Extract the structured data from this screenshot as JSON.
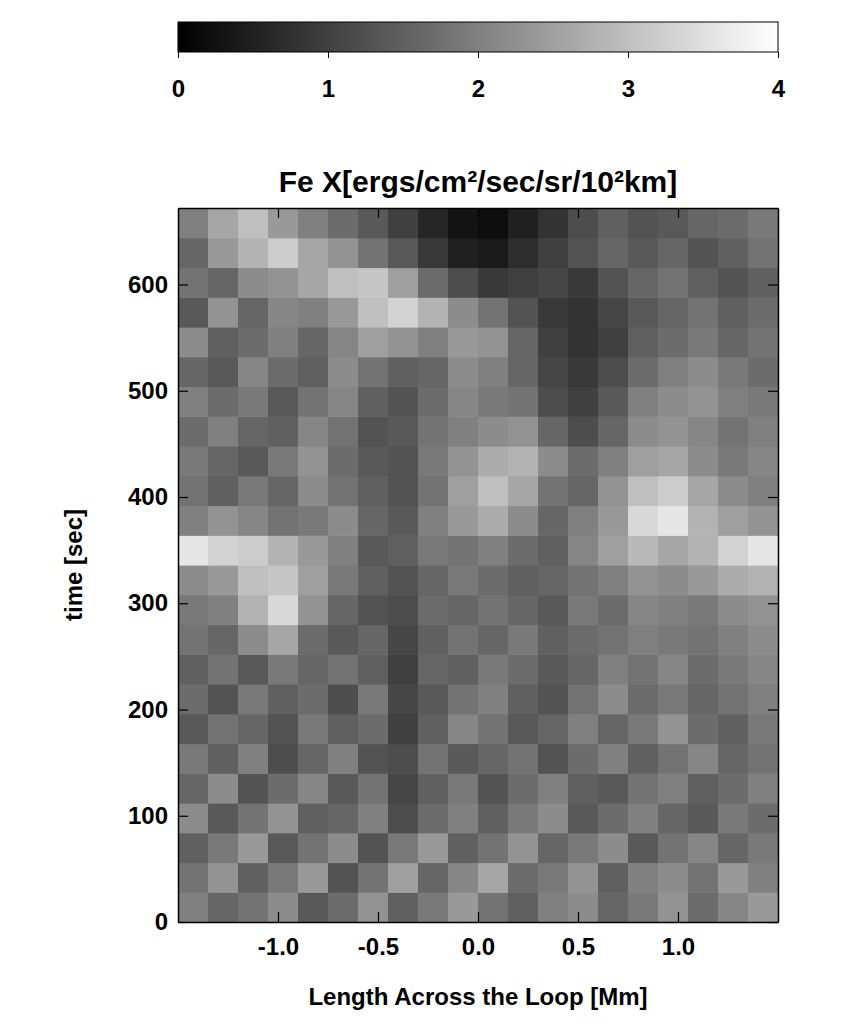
{
  "chart_data": {
    "type": "heatmap",
    "title": "Fe X[ergs/cm²/sec/sr/10²km]",
    "x_label": "Length Across the Loop [Mm]",
    "y_label": "time [sec]",
    "xlim": [
      -1.5,
      1.5
    ],
    "ylim": [
      0,
      672
    ],
    "xticks": [
      {
        "value": -1,
        "label": "-1.0"
      },
      -0.5,
      {
        "value": 0,
        "label": "0.0"
      },
      0.5,
      {
        "value": 1,
        "label": "1.0"
      }
    ],
    "yticks": [
      0,
      100,
      200,
      300,
      400,
      500,
      600
    ],
    "x_bins": [
      -1.5,
      -1.35,
      -1.2,
      -1.05,
      -0.9,
      -0.75,
      -0.6,
      -0.45,
      -0.3,
      -0.15,
      0,
      0.15,
      0.3,
      0.45,
      0.6,
      0.75,
      0.9,
      1.05,
      1.2,
      1.35,
      1.5
    ],
    "y_bins": [
      0,
      28,
      56,
      84,
      112,
      140,
      168,
      196,
      224,
      252,
      280,
      308,
      336,
      364,
      392,
      420,
      448,
      476,
      504,
      532,
      560,
      588,
      616,
      644,
      672
    ],
    "colorbar_lim": [
      0,
      4
    ],
    "colorbar_ticks": [
      0,
      1,
      2,
      3,
      4
    ],
    "cells": [
      [
        2.0,
        1.6,
        1.8,
        2.2,
        1.4,
        1.7,
        2.3,
        1.5,
        1.9,
        2.4,
        1.8,
        1.5,
        2.0,
        2.2,
        1.6,
        1.9,
        2.3,
        1.7,
        2.1,
        2.4
      ],
      [
        1.8,
        2.3,
        1.5,
        1.9,
        2.4,
        1.3,
        1.8,
        2.5,
        1.6,
        2.1,
        2.6,
        1.7,
        1.9,
        2.3,
        1.5,
        2.0,
        2.2,
        1.8,
        2.4,
        2.0
      ],
      [
        1.5,
        1.9,
        2.4,
        1.4,
        1.8,
        2.2,
        1.3,
        1.9,
        2.4,
        1.5,
        1.8,
        2.3,
        1.6,
        1.9,
        2.2,
        1.4,
        1.8,
        2.1,
        1.6,
        1.9
      ],
      [
        2.2,
        1.4,
        1.8,
        2.3,
        1.5,
        1.6,
        2.0,
        1.2,
        1.7,
        2.0,
        1.5,
        1.9,
        2.2,
        1.4,
        1.7,
        2.0,
        1.6,
        1.4,
        1.9,
        1.7
      ],
      [
        1.6,
        2.2,
        1.3,
        1.7,
        2.1,
        1.4,
        1.8,
        1.1,
        1.5,
        1.9,
        1.3,
        1.7,
        2.0,
        1.5,
        1.4,
        1.8,
        2.0,
        1.5,
        1.7,
        2.0
      ],
      [
        1.9,
        1.5,
        2.0,
        1.2,
        1.6,
        2.0,
        1.3,
        1.2,
        1.8,
        1.4,
        1.6,
        1.8,
        1.3,
        1.7,
        2.0,
        1.5,
        1.8,
        2.1,
        1.6,
        1.8
      ],
      [
        1.4,
        1.8,
        1.6,
        1.3,
        1.9,
        1.5,
        1.7,
        1.0,
        1.5,
        2.1,
        1.8,
        1.4,
        1.6,
        2.0,
        1.6,
        1.9,
        2.3,
        1.7,
        1.5,
        1.9
      ],
      [
        1.7,
        1.3,
        1.9,
        1.5,
        1.7,
        1.2,
        1.9,
        1.1,
        1.4,
        1.8,
        2.0,
        1.5,
        1.3,
        1.8,
        2.2,
        1.7,
        1.9,
        1.6,
        1.8,
        2.0
      ],
      [
        1.5,
        1.8,
        1.4,
        1.9,
        1.6,
        1.8,
        1.5,
        1.0,
        1.6,
        1.5,
        1.9,
        1.7,
        1.4,
        1.6,
        2.0,
        1.8,
        2.1,
        1.7,
        1.9,
        2.1
      ],
      [
        1.8,
        1.6,
        2.2,
        2.6,
        1.7,
        1.4,
        1.6,
        1.1,
        1.5,
        1.8,
        1.6,
        1.9,
        1.5,
        1.7,
        1.8,
        2.0,
        1.9,
        1.8,
        2.0,
        2.2
      ],
      [
        1.9,
        2.0,
        2.8,
        3.4,
        2.3,
        1.6,
        1.3,
        1.2,
        1.7,
        1.6,
        1.8,
        1.6,
        1.4,
        1.9,
        1.7,
        2.1,
        2.0,
        1.9,
        2.2,
        2.3
      ],
      [
        2.2,
        2.4,
        3.0,
        3.1,
        2.5,
        1.9,
        1.5,
        1.3,
        1.6,
        1.9,
        1.7,
        1.5,
        1.6,
        1.8,
        2.0,
        2.3,
        2.2,
        2.4,
        2.7,
        2.8
      ],
      [
        3.6,
        3.3,
        3.2,
        2.8,
        2.4,
        2.0,
        1.4,
        1.5,
        1.9,
        1.8,
        2.0,
        1.7,
        1.5,
        2.1,
        2.5,
        2.9,
        2.6,
        2.8,
        3.3,
        3.6
      ],
      [
        2.0,
        2.3,
        2.1,
        1.8,
        1.9,
        2.2,
        1.6,
        1.4,
        2.0,
        2.4,
        2.7,
        2.2,
        1.6,
        2.0,
        2.4,
        3.4,
        3.6,
        2.8,
        2.5,
        2.3
      ],
      [
        1.8,
        1.5,
        1.9,
        1.6,
        2.2,
        1.8,
        1.5,
        1.3,
        1.8,
        2.5,
        3.0,
        2.6,
        1.8,
        1.6,
        2.3,
        3.0,
        3.2,
        2.6,
        2.2,
        2.0
      ],
      [
        1.9,
        1.6,
        1.4,
        1.9,
        2.3,
        1.7,
        1.4,
        1.3,
        1.9,
        2.3,
        2.7,
        2.8,
        2.2,
        1.7,
        2.0,
        2.5,
        2.6,
        2.2,
        1.9,
        2.1
      ],
      [
        1.7,
        2.0,
        1.6,
        1.5,
        2.1,
        1.8,
        1.3,
        1.4,
        1.8,
        2.0,
        2.2,
        2.3,
        1.6,
        1.2,
        1.6,
        2.2,
        2.3,
        2.1,
        1.8,
        2.0
      ],
      [
        2.0,
        1.7,
        1.9,
        1.4,
        1.8,
        2.1,
        1.5,
        1.3,
        1.7,
        2.1,
        1.9,
        1.8,
        1.2,
        1.0,
        1.4,
        2.0,
        2.2,
        2.3,
        2.0,
        1.9
      ],
      [
        1.6,
        1.4,
        2.1,
        1.7,
        1.5,
        2.2,
        1.8,
        1.5,
        1.6,
        2.2,
        2.0,
        1.6,
        1.1,
        0.9,
        1.2,
        1.7,
        2.0,
        2.2,
        1.9,
        1.7
      ],
      [
        2.2,
        1.5,
        1.7,
        2.0,
        1.6,
        2.1,
        2.5,
        2.3,
        2.0,
        2.4,
        2.3,
        1.6,
        1.0,
        0.8,
        1.0,
        1.5,
        1.7,
        1.9,
        1.6,
        1.8
      ],
      [
        1.4,
        2.3,
        1.6,
        2.1,
        2.0,
        2.4,
        3.0,
        3.3,
        2.8,
        2.2,
        1.8,
        1.3,
        0.9,
        0.8,
        1.1,
        1.4,
        1.6,
        1.8,
        1.5,
        1.7
      ],
      [
        1.8,
        1.6,
        2.2,
        2.3,
        2.6,
        3.0,
        3.1,
        2.5,
        1.7,
        1.2,
        0.9,
        1.0,
        1.1,
        0.9,
        1.3,
        1.6,
        1.8,
        1.5,
        1.3,
        1.5
      ],
      [
        1.6,
        2.4,
        2.8,
        3.2,
        2.6,
        2.3,
        1.8,
        1.4,
        0.9,
        0.5,
        0.4,
        0.7,
        1.0,
        1.3,
        1.6,
        1.4,
        1.6,
        1.3,
        1.5,
        1.8
      ],
      [
        2.0,
        2.6,
        3.0,
        2.4,
        2.0,
        1.7,
        1.4,
        1.0,
        0.6,
        0.3,
        0.2,
        0.5,
        0.8,
        1.2,
        1.5,
        1.3,
        1.4,
        1.6,
        1.7,
        1.9
      ]
    ]
  }
}
